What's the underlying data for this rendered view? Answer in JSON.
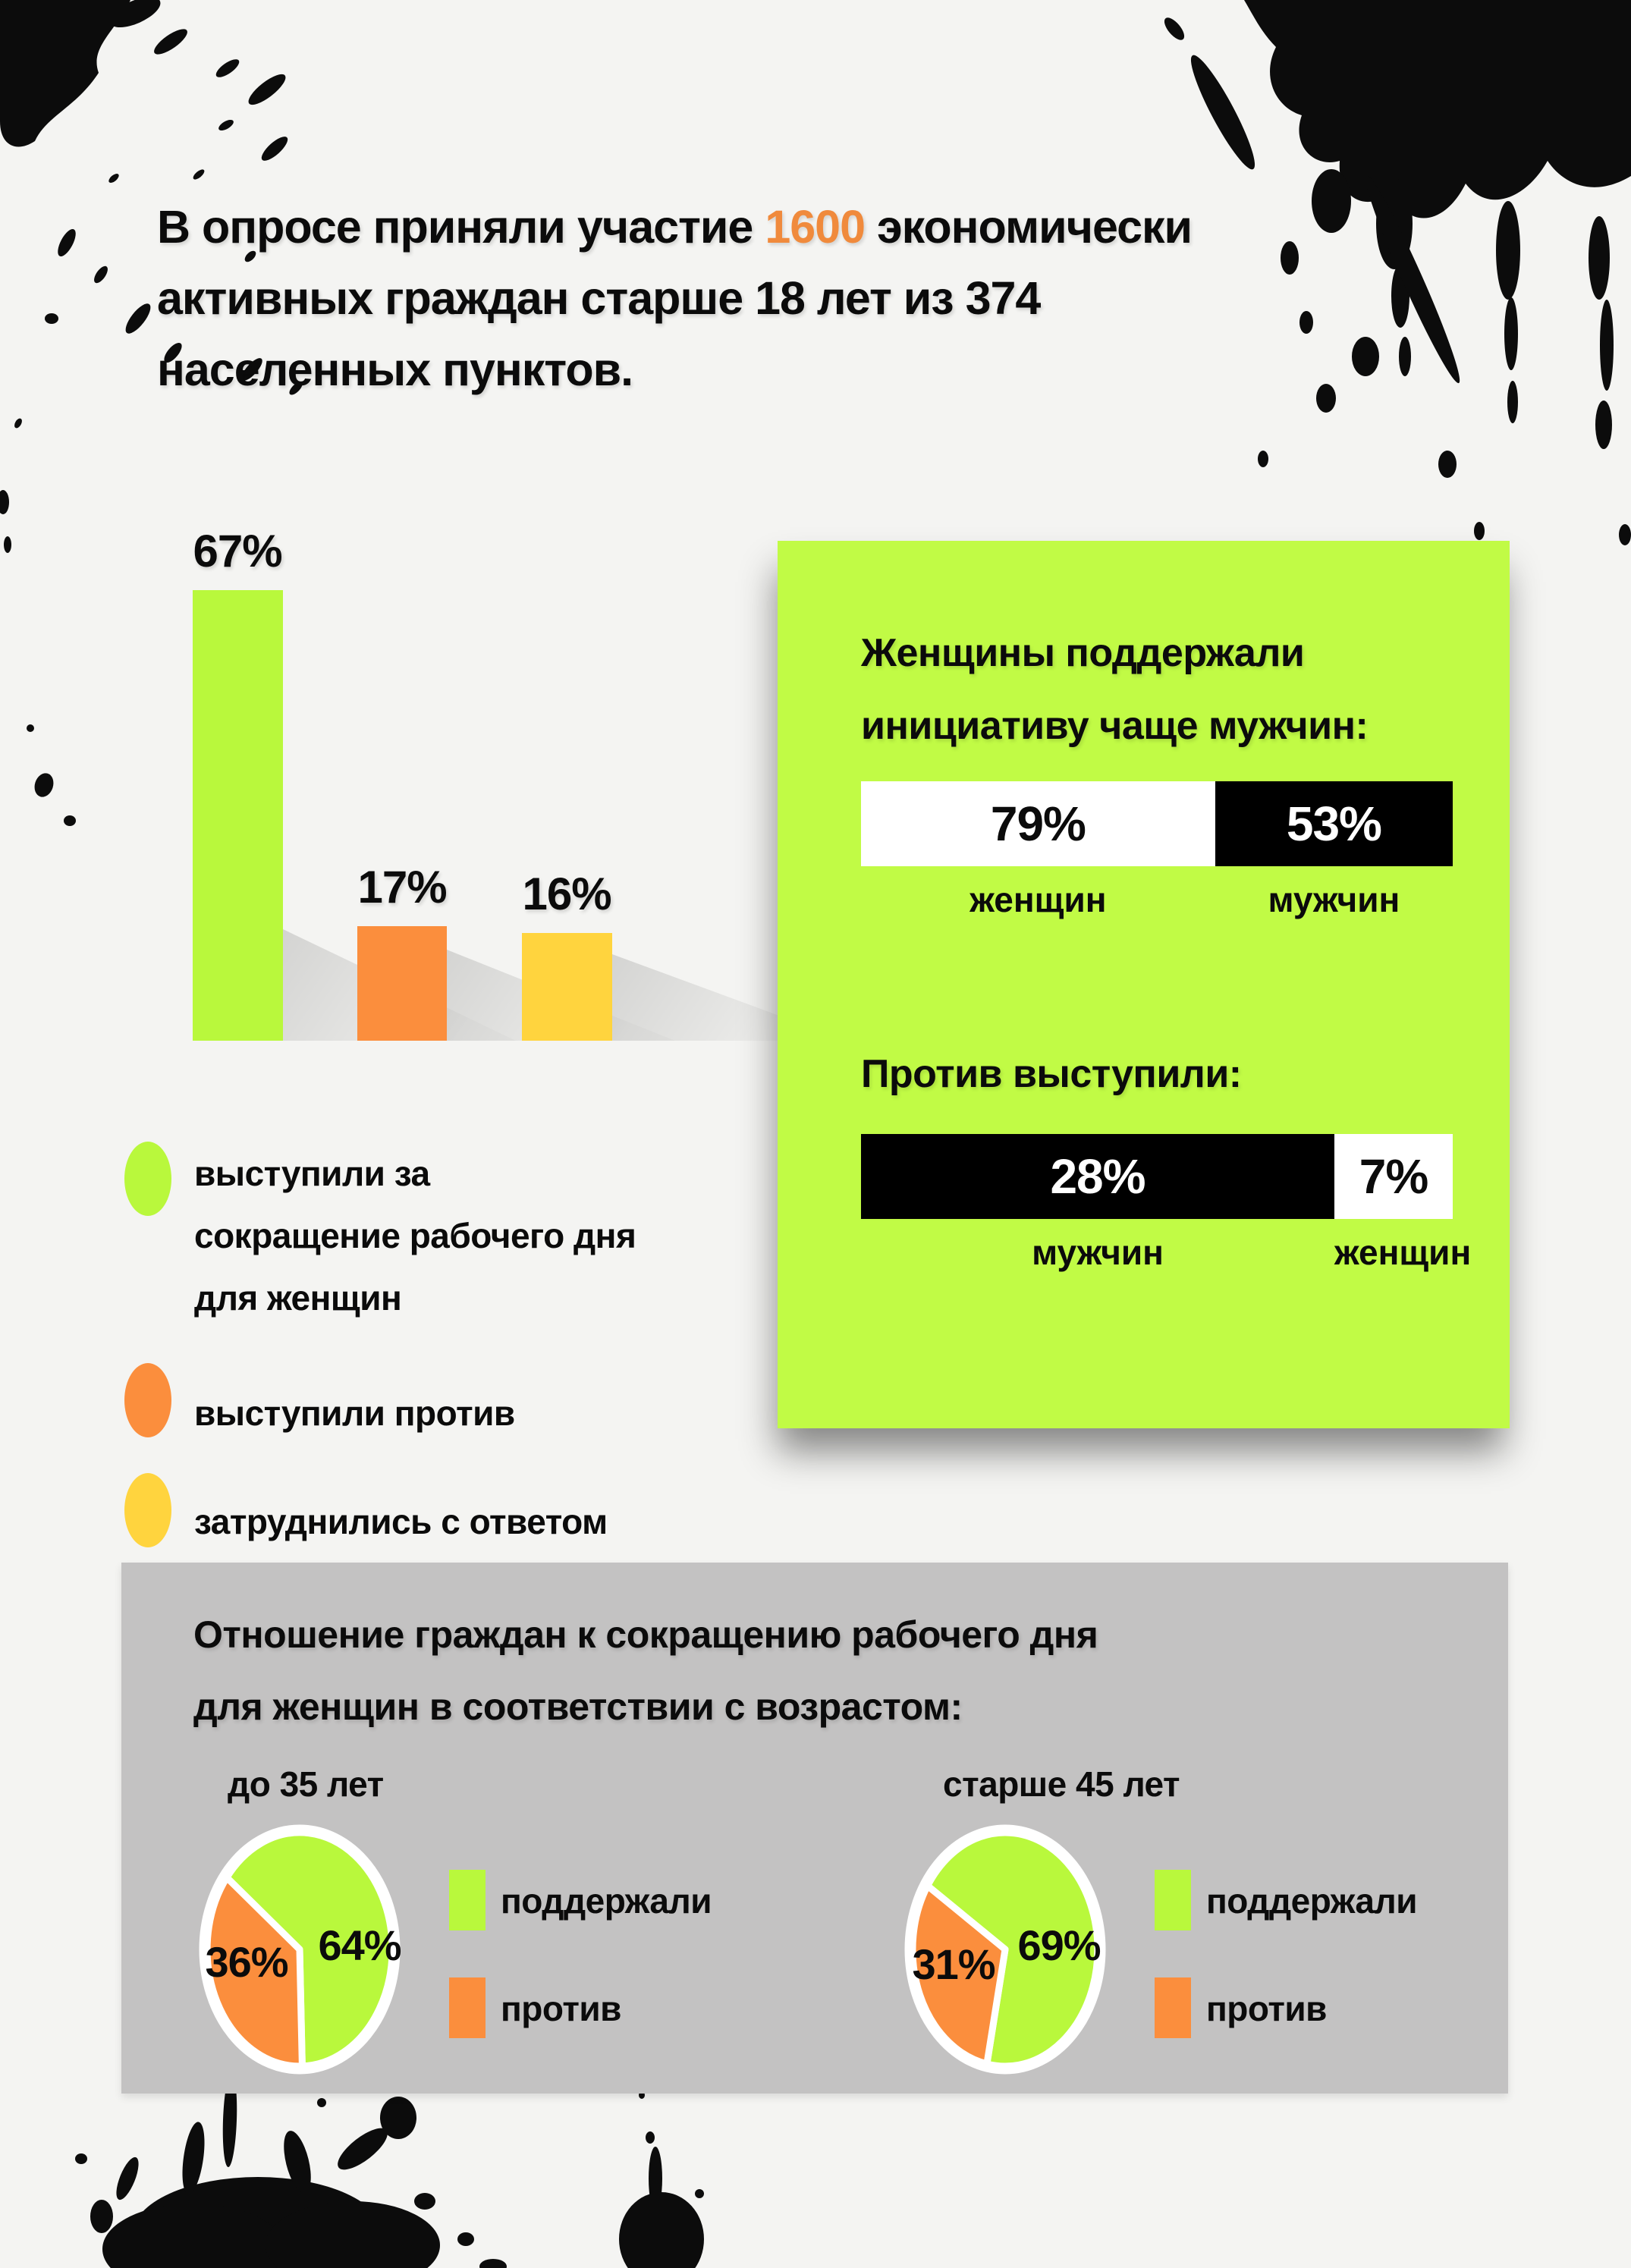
{
  "palette": {
    "background": "#f4f4f2",
    "accent_orange": "#f08a3c",
    "green": "#b9f83c",
    "orange": "#fb8e3d",
    "yellow": "#ffd43e",
    "card_green": "#c1fb45",
    "panel_gray": "#c3c2c2",
    "black": "#0b0b0b",
    "white": "#ffffff"
  },
  "header": {
    "line1_before": "В опросе приняли участие ",
    "line1_number": "1600",
    "line1_after": " экономически",
    "line2": "активных граждан старше 18 лет из 374",
    "line3": "населенных пунктов."
  },
  "chart_data": [
    {
      "type": "bar",
      "name": "overall-attitude",
      "categories": [
        "выступили за сокращение рабочего дня для женщин",
        "выступили против",
        "затруднились с ответом"
      ],
      "values": [
        67,
        17,
        16
      ],
      "value_labels": [
        "67%",
        "17%",
        "16%"
      ],
      "colors": [
        "#b9f83c",
        "#fb8e3d",
        "#ffd43e"
      ],
      "ylim": [
        0,
        100
      ],
      "grid": false,
      "legend_position": "below-left"
    },
    {
      "type": "bar",
      "name": "supported-by-gender",
      "title": "Женщины поддержали инициативу чаще мужчин:",
      "categories": [
        "женщин",
        "мужчин"
      ],
      "values": [
        79,
        53
      ],
      "value_labels": [
        "79%",
        "53%"
      ],
      "colors": [
        "#ffffff",
        "#000000"
      ],
      "layout": "proportional-horizontal"
    },
    {
      "type": "bar",
      "name": "opposed-by-gender",
      "title": "Против выступили:",
      "categories": [
        "мужчин",
        "женщин"
      ],
      "values": [
        28,
        7
      ],
      "value_labels": [
        "28%",
        "7%"
      ],
      "colors": [
        "#000000",
        "#ffffff"
      ],
      "layout": "proportional-horizontal"
    },
    {
      "type": "pie",
      "name": "under-35",
      "title": "до 35 лет",
      "labels": [
        "поддержали",
        "против"
      ],
      "values": [
        64,
        36
      ],
      "value_labels": [
        "64%",
        "36%"
      ],
      "colors": [
        "#b9f83c",
        "#fb8e3d"
      ]
    },
    {
      "type": "pie",
      "name": "over-45",
      "title": "старше 45 лет",
      "labels": [
        "поддержали",
        "против"
      ],
      "values": [
        69,
        31
      ],
      "value_labels": [
        "69%",
        "31%"
      ],
      "colors": [
        "#b9f83c",
        "#fb8e3d"
      ]
    }
  ],
  "age_panel": {
    "title": "Отношение граждан к сокращению рабочего дня для женщин в соответствии с возрастом:"
  }
}
